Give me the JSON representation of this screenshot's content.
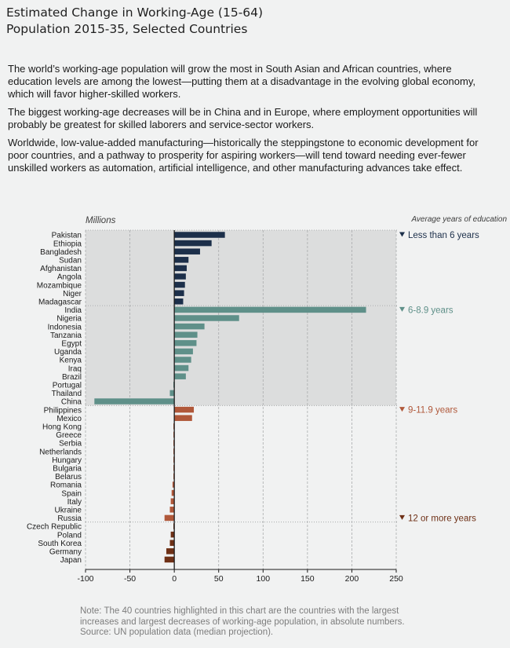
{
  "title_lines": [
    "Estimated Change in Working-Age (15-64)",
    "Population 2015-35, Selected Countries"
  ],
  "paragraphs": [
    "The world’s working-age population will grow the most in South Asian and African countries, where education levels are among the lowest—putting them at a disadvantage in the evolving global economy, which will favor higher-skilled workers.",
    "The biggest working-age decreases will be in China and in Europe, where employment opportunities will probably be greatest for skilled laborers and service-sector workers.",
    "Worldwide, low-value-added manufacturing—historically the steppingstone to economic development for poor countries, and a pathway to prosperity for aspiring workers—will tend toward needing ever-fewer unskilled workers as automation, artificial intelligence, and other manufacturing advances take effect."
  ],
  "note_lines": [
    "Note: The 40 countries highlighted in this chart are the countries with the largest",
    "increases and largest decreases of working-age population, in absolute numbers.",
    "Source: UN population data (median projection)."
  ],
  "chart_data": {
    "type": "bar",
    "orientation": "horizontal",
    "unit_label": "Millions",
    "legend_title": "Average years of education",
    "xlim": [
      -100,
      250
    ],
    "xticks": [
      "-100",
      "-50",
      "0",
      "50",
      "100",
      "150",
      "200",
      "250"
    ],
    "grid": true,
    "groups": [
      {
        "label": "Less than 6 years",
        "color": "#1c2f4a",
        "label_color": "#1c2f4a",
        "shaded": true,
        "categories": [
          "Pakistan",
          "Ethiopia",
          "Bangladesh",
          "Sudan",
          "Afghanistan",
          "Angola",
          "Mozambique",
          "Niger",
          "Madagascar"
        ],
        "values": [
          57,
          42,
          29,
          16,
          14,
          13,
          12,
          11,
          10
        ]
      },
      {
        "label": "6-8.9 years",
        "color": "#5f9089",
        "label_color": "#5f9089",
        "shaded": true,
        "categories": [
          "India",
          "Nigeria",
          "Indonesia",
          "Tanzania",
          "Egypt",
          "Uganda",
          "Kenya",
          "Iraq",
          "Brazil",
          "Portugal",
          "Thailand",
          "China"
        ],
        "values": [
          216,
          73,
          34,
          26,
          25,
          21,
          19,
          16,
          13,
          -1,
          -5,
          -90
        ]
      },
      {
        "label": "9-11.9 years",
        "color": "#b0583a",
        "label_color": "#b0583a",
        "shaded": false,
        "categories": [
          "Philippines",
          "Mexico",
          "Hong Kong",
          "Greece",
          "Serbia",
          "Netherlands",
          "Hungary",
          "Bulgaria",
          "Belarus",
          "Romania",
          "Spain",
          "Italy",
          "Ukraine",
          "Russia"
        ],
        "values": [
          22,
          20,
          -1,
          -1,
          -1,
          -1,
          -1,
          -1,
          -1,
          -2,
          -3,
          -4,
          -5,
          -11
        ]
      },
      {
        "label": "12 or more years",
        "color": "#6e3016",
        "label_color": "#6e3016",
        "shaded": false,
        "categories": [
          "Czech Republic",
          "Poland",
          "South Korea",
          "Germany",
          "Japan"
        ],
        "values": [
          -1,
          -4,
          -5,
          -9,
          -11
        ]
      }
    ]
  }
}
